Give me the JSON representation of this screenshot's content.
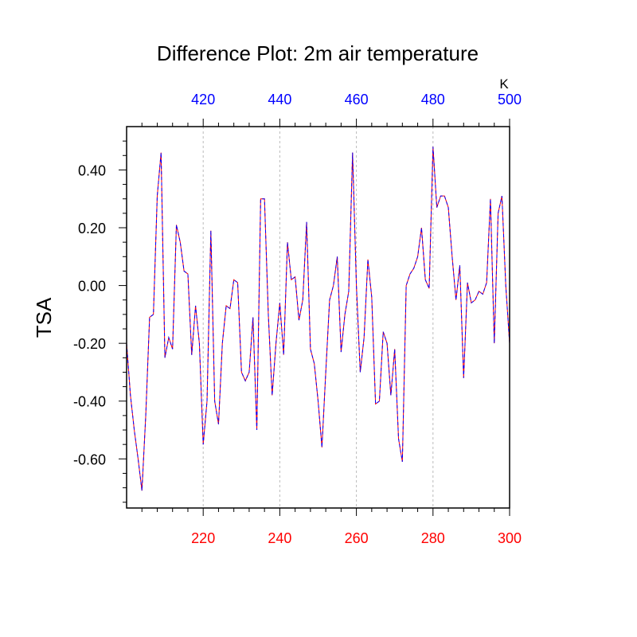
{
  "chart_data": {
    "type": "line",
    "title": "Difference Plot: 2m air temperature",
    "xlabel": "",
    "ylabel": "TSA",
    "top_axis_unit": "K",
    "xlim": [
      200,
      300
    ],
    "ylim": [
      -0.77,
      0.55
    ],
    "grid": "vertical dashed at major x ticks",
    "legend": "none",
    "bottom_x_ticks": [
      {
        "value": 220,
        "label": "220"
      },
      {
        "value": 240,
        "label": "240"
      },
      {
        "value": 260,
        "label": "260"
      },
      {
        "value": 280,
        "label": "280"
      },
      {
        "value": 300,
        "label": "300"
      }
    ],
    "top_x_ticks": [
      {
        "value": 220,
        "label": "420"
      },
      {
        "value": 240,
        "label": "440"
      },
      {
        "value": 260,
        "label": "460"
      },
      {
        "value": 280,
        "label": "480"
      },
      {
        "value": 300,
        "label": "500"
      }
    ],
    "y_ticks": [
      {
        "value": 0.4,
        "label": "0.40"
      },
      {
        "value": 0.2,
        "label": "0.20"
      },
      {
        "value": 0.0,
        "label": "0.00"
      },
      {
        "value": -0.2,
        "label": "-0.20"
      },
      {
        "value": -0.4,
        "label": "-0.40"
      },
      {
        "value": -0.6,
        "label": "-0.60"
      }
    ],
    "colors": {
      "series_a": "#ff0000",
      "series_b": "#0000ff",
      "bottom_axis_labels": "#ff0000",
      "top_axis_labels": "#0000ff",
      "grid": "#bbbbbb"
    },
    "x": [
      200,
      201,
      202,
      203,
      204,
      205,
      206,
      207,
      208,
      209,
      210,
      211,
      212,
      213,
      214,
      215,
      216,
      217,
      218,
      219,
      220,
      221,
      222,
      223,
      224,
      225,
      226,
      227,
      228,
      229,
      230,
      231,
      232,
      233,
      234,
      235,
      236,
      237,
      238,
      239,
      240,
      241,
      242,
      243,
      244,
      245,
      246,
      247,
      248,
      249,
      250,
      251,
      252,
      253,
      254,
      255,
      256,
      257,
      258,
      259,
      260,
      261,
      262,
      263,
      264,
      265,
      266,
      267,
      268,
      269,
      270,
      271,
      272,
      273,
      274,
      275,
      276,
      277,
      278,
      279,
      280,
      281,
      282,
      283,
      284,
      285,
      286,
      287,
      288,
      289,
      290,
      291,
      292,
      293,
      294,
      295,
      296,
      297,
      298,
      299,
      300
    ],
    "series": [
      {
        "values": [
          -0.2,
          -0.38,
          -0.5,
          -0.6,
          -0.71,
          -0.45,
          -0.11,
          -0.1,
          0.31,
          0.46,
          -0.25,
          -0.18,
          -0.22,
          0.21,
          0.15,
          0.05,
          0.04,
          -0.24,
          -0.07,
          -0.2,
          -0.55,
          -0.4,
          0.19,
          -0.4,
          -0.48,
          -0.2,
          -0.07,
          -0.08,
          0.02,
          0.01,
          -0.3,
          -0.33,
          -0.3,
          -0.11,
          -0.5,
          0.3,
          0.3,
          -0.1,
          -0.38,
          -0.2,
          -0.06,
          -0.24,
          0.15,
          0.02,
          0.03,
          -0.12,
          -0.05,
          0.22,
          -0.22,
          -0.27,
          -0.4,
          -0.56,
          -0.3,
          -0.05,
          0.0,
          0.1,
          -0.23,
          -0.1,
          -0.02,
          0.46,
          0.0,
          -0.3,
          -0.18,
          0.09,
          -0.04,
          -0.41,
          -0.4,
          -0.16,
          -0.2,
          -0.38,
          -0.22,
          -0.53,
          -0.61,
          0.0,
          0.04,
          0.06,
          0.1,
          0.2,
          0.02,
          -0.01,
          0.48,
          0.27,
          0.31,
          0.31,
          0.27,
          0.1,
          -0.05,
          0.07,
          -0.32,
          0.01,
          -0.06,
          -0.05,
          -0.02,
          -0.03,
          0.01,
          0.3,
          -0.2,
          0.25,
          0.31,
          0.0,
          -0.2
        ]
      },
      {
        "values": [
          -0.2,
          -0.38,
          -0.5,
          -0.6,
          -0.71,
          -0.45,
          -0.11,
          -0.1,
          0.31,
          0.46,
          -0.25,
          -0.18,
          -0.22,
          0.21,
          0.15,
          0.05,
          0.04,
          -0.24,
          -0.07,
          -0.2,
          -0.55,
          -0.4,
          0.19,
          -0.4,
          -0.48,
          -0.2,
          -0.07,
          -0.08,
          0.02,
          0.01,
          -0.3,
          -0.33,
          -0.3,
          -0.11,
          -0.5,
          0.3,
          0.3,
          -0.1,
          -0.38,
          -0.2,
          -0.06,
          -0.24,
          0.15,
          0.02,
          0.03,
          -0.12,
          -0.05,
          0.22,
          -0.22,
          -0.27,
          -0.4,
          -0.56,
          -0.3,
          -0.05,
          0.0,
          0.1,
          -0.23,
          -0.1,
          -0.02,
          0.46,
          0.0,
          -0.3,
          -0.18,
          0.09,
          -0.04,
          -0.41,
          -0.4,
          -0.16,
          -0.2,
          -0.38,
          -0.22,
          -0.53,
          -0.61,
          0.0,
          0.04,
          0.06,
          0.1,
          0.2,
          0.02,
          -0.01,
          0.48,
          0.27,
          0.31,
          0.31,
          0.27,
          0.1,
          -0.05,
          0.07,
          -0.32,
          0.01,
          -0.06,
          -0.05,
          -0.02,
          -0.03,
          0.01,
          0.3,
          -0.2,
          0.25,
          0.31,
          0.0,
          -0.2
        ]
      }
    ]
  }
}
